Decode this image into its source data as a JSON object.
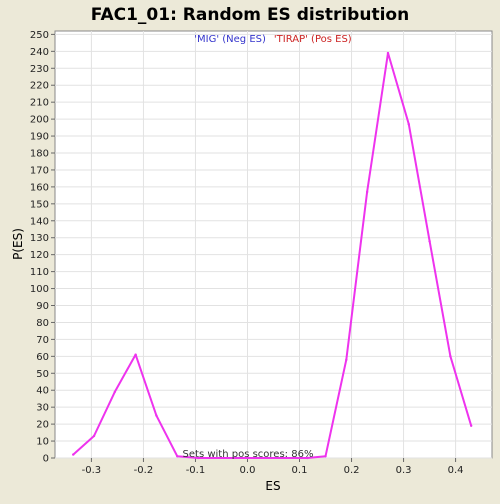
{
  "chart_data": {
    "type": "line",
    "title": "FAC1_01: Random ES distribution",
    "xlabel": "ES",
    "ylabel": "P(ES)",
    "xlim": [
      -0.37,
      0.47
    ],
    "ylim": [
      0,
      252
    ],
    "x_ticks": [
      -0.3,
      -0.2,
      -0.1,
      0.0,
      0.1,
      0.2,
      0.3,
      0.4
    ],
    "x_tick_labels": [
      "-0.3",
      "-0.2",
      "-0.1",
      "0.0",
      "0.1",
      "0.2",
      "0.3",
      "0.4"
    ],
    "y_ticks": [
      0,
      10,
      20,
      30,
      40,
      50,
      60,
      70,
      80,
      90,
      100,
      110,
      120,
      130,
      140,
      150,
      160,
      170,
      180,
      190,
      200,
      210,
      220,
      230,
      240,
      250
    ],
    "grid": true,
    "legend": [
      {
        "label": "'MIG' (Neg ES)",
        "color": "#3333cc"
      },
      {
        "label": "'TIRAP' (Pos ES)",
        "color": "#cc2222"
      }
    ],
    "legend_placement": "top-center",
    "annotation": "Sets with pos scores: 86%",
    "series_color": "#ee33ee",
    "series": [
      {
        "x": [
          -0.335,
          -0.295,
          -0.255,
          -0.215,
          -0.175,
          -0.135,
          -0.095,
          0.115,
          0.15,
          0.19,
          0.23,
          0.27,
          0.31,
          0.35,
          0.39,
          0.43
        ],
        "values": [
          2,
          13,
          39,
          61,
          25,
          1,
          0,
          0,
          1,
          58,
          157,
          239,
          197,
          128,
          60,
          19
        ]
      }
    ]
  }
}
